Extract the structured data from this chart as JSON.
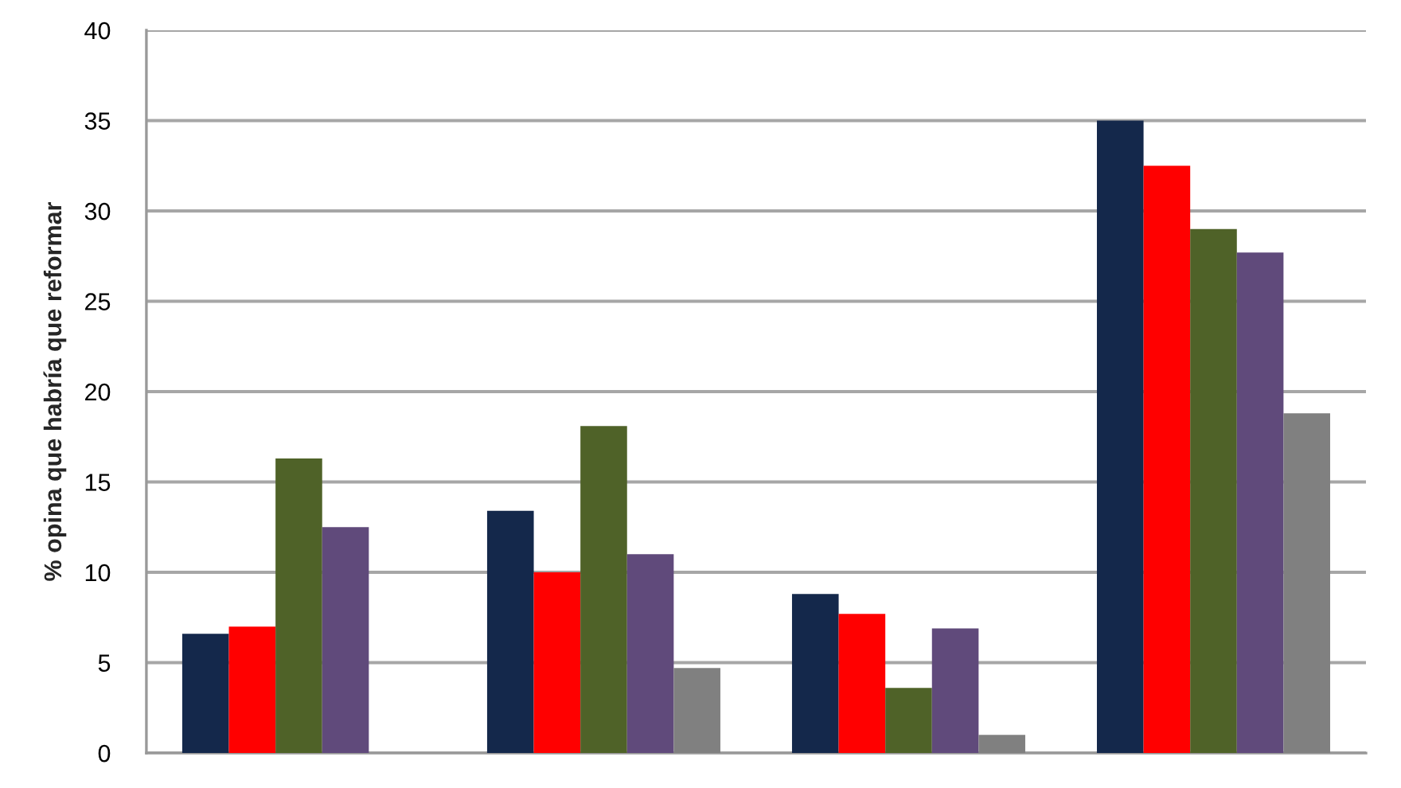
{
  "chart_data": {
    "type": "bar",
    "ylabel": "% opina que habría que reformar",
    "categories": [
      null,
      null,
      null,
      null
    ],
    "series": [
      {
        "color": "#14284b",
        "values": [
          6.6,
          13.4,
          8.8,
          35.0
        ]
      },
      {
        "color": "#ff0000",
        "values": [
          7.0,
          10.0,
          7.7,
          32.5
        ]
      },
      {
        "color": "#4f6228",
        "values": [
          16.3,
          18.1,
          3.6,
          29.0
        ]
      },
      {
        "color": "#604a7b",
        "values": [
          12.5,
          11.0,
          6.9,
          27.7
        ]
      },
      {
        "color": "#808080",
        "values": [
          null,
          4.7,
          1.0,
          18.8
        ]
      }
    ],
    "ylim": [
      0,
      40
    ],
    "yticks": [
      0,
      5,
      10,
      15,
      20,
      25,
      30,
      35,
      40
    ],
    "grid": "y"
  }
}
